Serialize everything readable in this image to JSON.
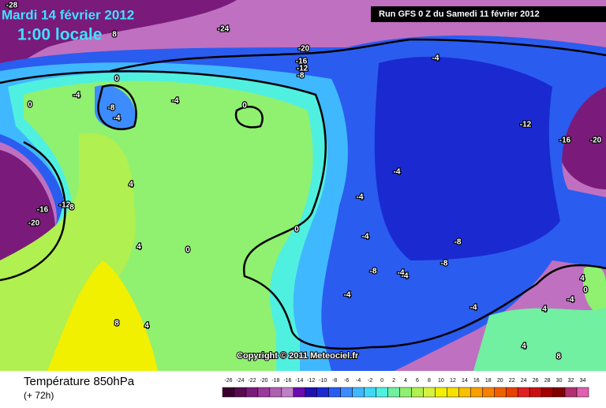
{
  "header": {
    "date": "Mardi 14 février 2012",
    "time": "1:00 locale",
    "run": "Run GFS 0 Z du Samedi 11 février 2012"
  },
  "copyright": "Copyright © 2011 Meteociel.fr",
  "footer": {
    "title": "Température 850hPa",
    "lead": "(+ 72h)"
  },
  "legend": {
    "values": [
      -26,
      -24,
      -22,
      -20,
      -18,
      -16,
      -14,
      -12,
      -10,
      -8,
      -6,
      -4,
      -2,
      0,
      2,
      4,
      6,
      8,
      10,
      12,
      14,
      16,
      18,
      20,
      22,
      24,
      26,
      28,
      30,
      32,
      34
    ],
    "colors": [
      "#3a0030",
      "#5a0a50",
      "#7a1a7a",
      "#9a3a9a",
      "#b060b0",
      "#c080c8",
      "#6a0ab0",
      "#2010b0",
      "#1a2ad0",
      "#2a5cf0",
      "#3c8cff",
      "#40b8ff",
      "#40d8f8",
      "#50f0e0",
      "#70f0a0",
      "#90f070",
      "#b0f050",
      "#d8f040",
      "#f0f000",
      "#f8e000",
      "#f8c000",
      "#f8a000",
      "#f88000",
      "#f06000",
      "#e84000",
      "#e02020",
      "#c81010",
      "#a00000",
      "#800000",
      "#b03070",
      "#e060b0"
    ]
  },
  "contour_labels": [
    -28,
    -24,
    8,
    -20,
    -16,
    -12,
    -8,
    -4,
    0,
    -4,
    -4,
    0,
    -8,
    -4,
    0,
    -12,
    -16,
    -20,
    4,
    -4,
    -4,
    -12,
    8,
    -16,
    -20,
    0,
    -4,
    4,
    0,
    -8,
    -8,
    -8,
    -4,
    -4,
    4,
    -4,
    0,
    -4,
    4,
    8,
    4,
    -4,
    4,
    8
  ]
}
